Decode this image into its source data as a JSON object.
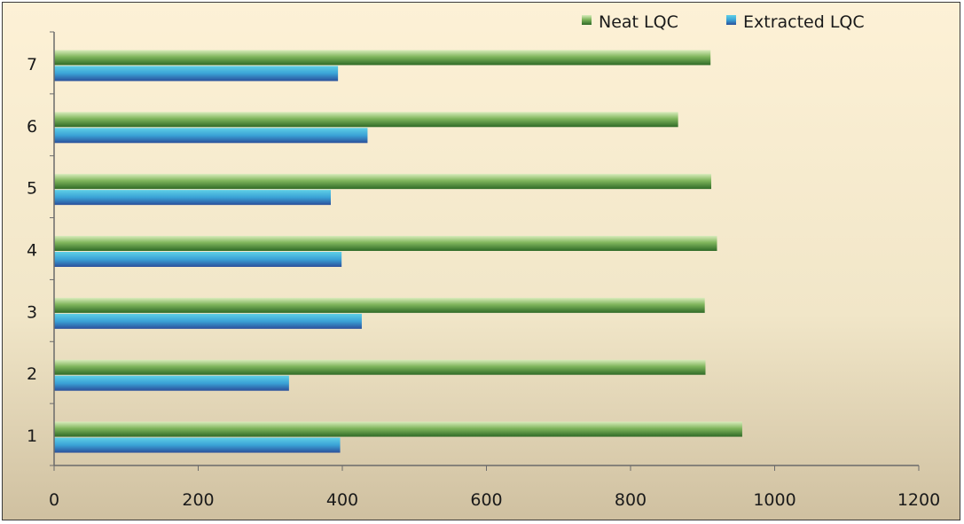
{
  "chart_data": {
    "type": "bar",
    "orientation": "horizontal",
    "categories": [
      "1",
      "2",
      "3",
      "4",
      "5",
      "6",
      "7"
    ],
    "series": [
      {
        "name": "Extracted LQC",
        "values": [
          397,
          326,
          427,
          399,
          384,
          435,
          394
        ],
        "color": "#3d8fd0"
      },
      {
        "name": "Neat LQC",
        "values": [
          955,
          904,
          903,
          920,
          912,
          866,
          911
        ],
        "color": "#4e8f3c"
      }
    ],
    "xlim": [
      0,
      1200
    ],
    "xticks": [
      "0",
      "200",
      "400",
      "600",
      "800",
      "1000",
      "1200"
    ],
    "grid": false,
    "legend_position": "top-right",
    "legend_order": [
      "Neat LQC",
      "Extracted LQC"
    ]
  }
}
